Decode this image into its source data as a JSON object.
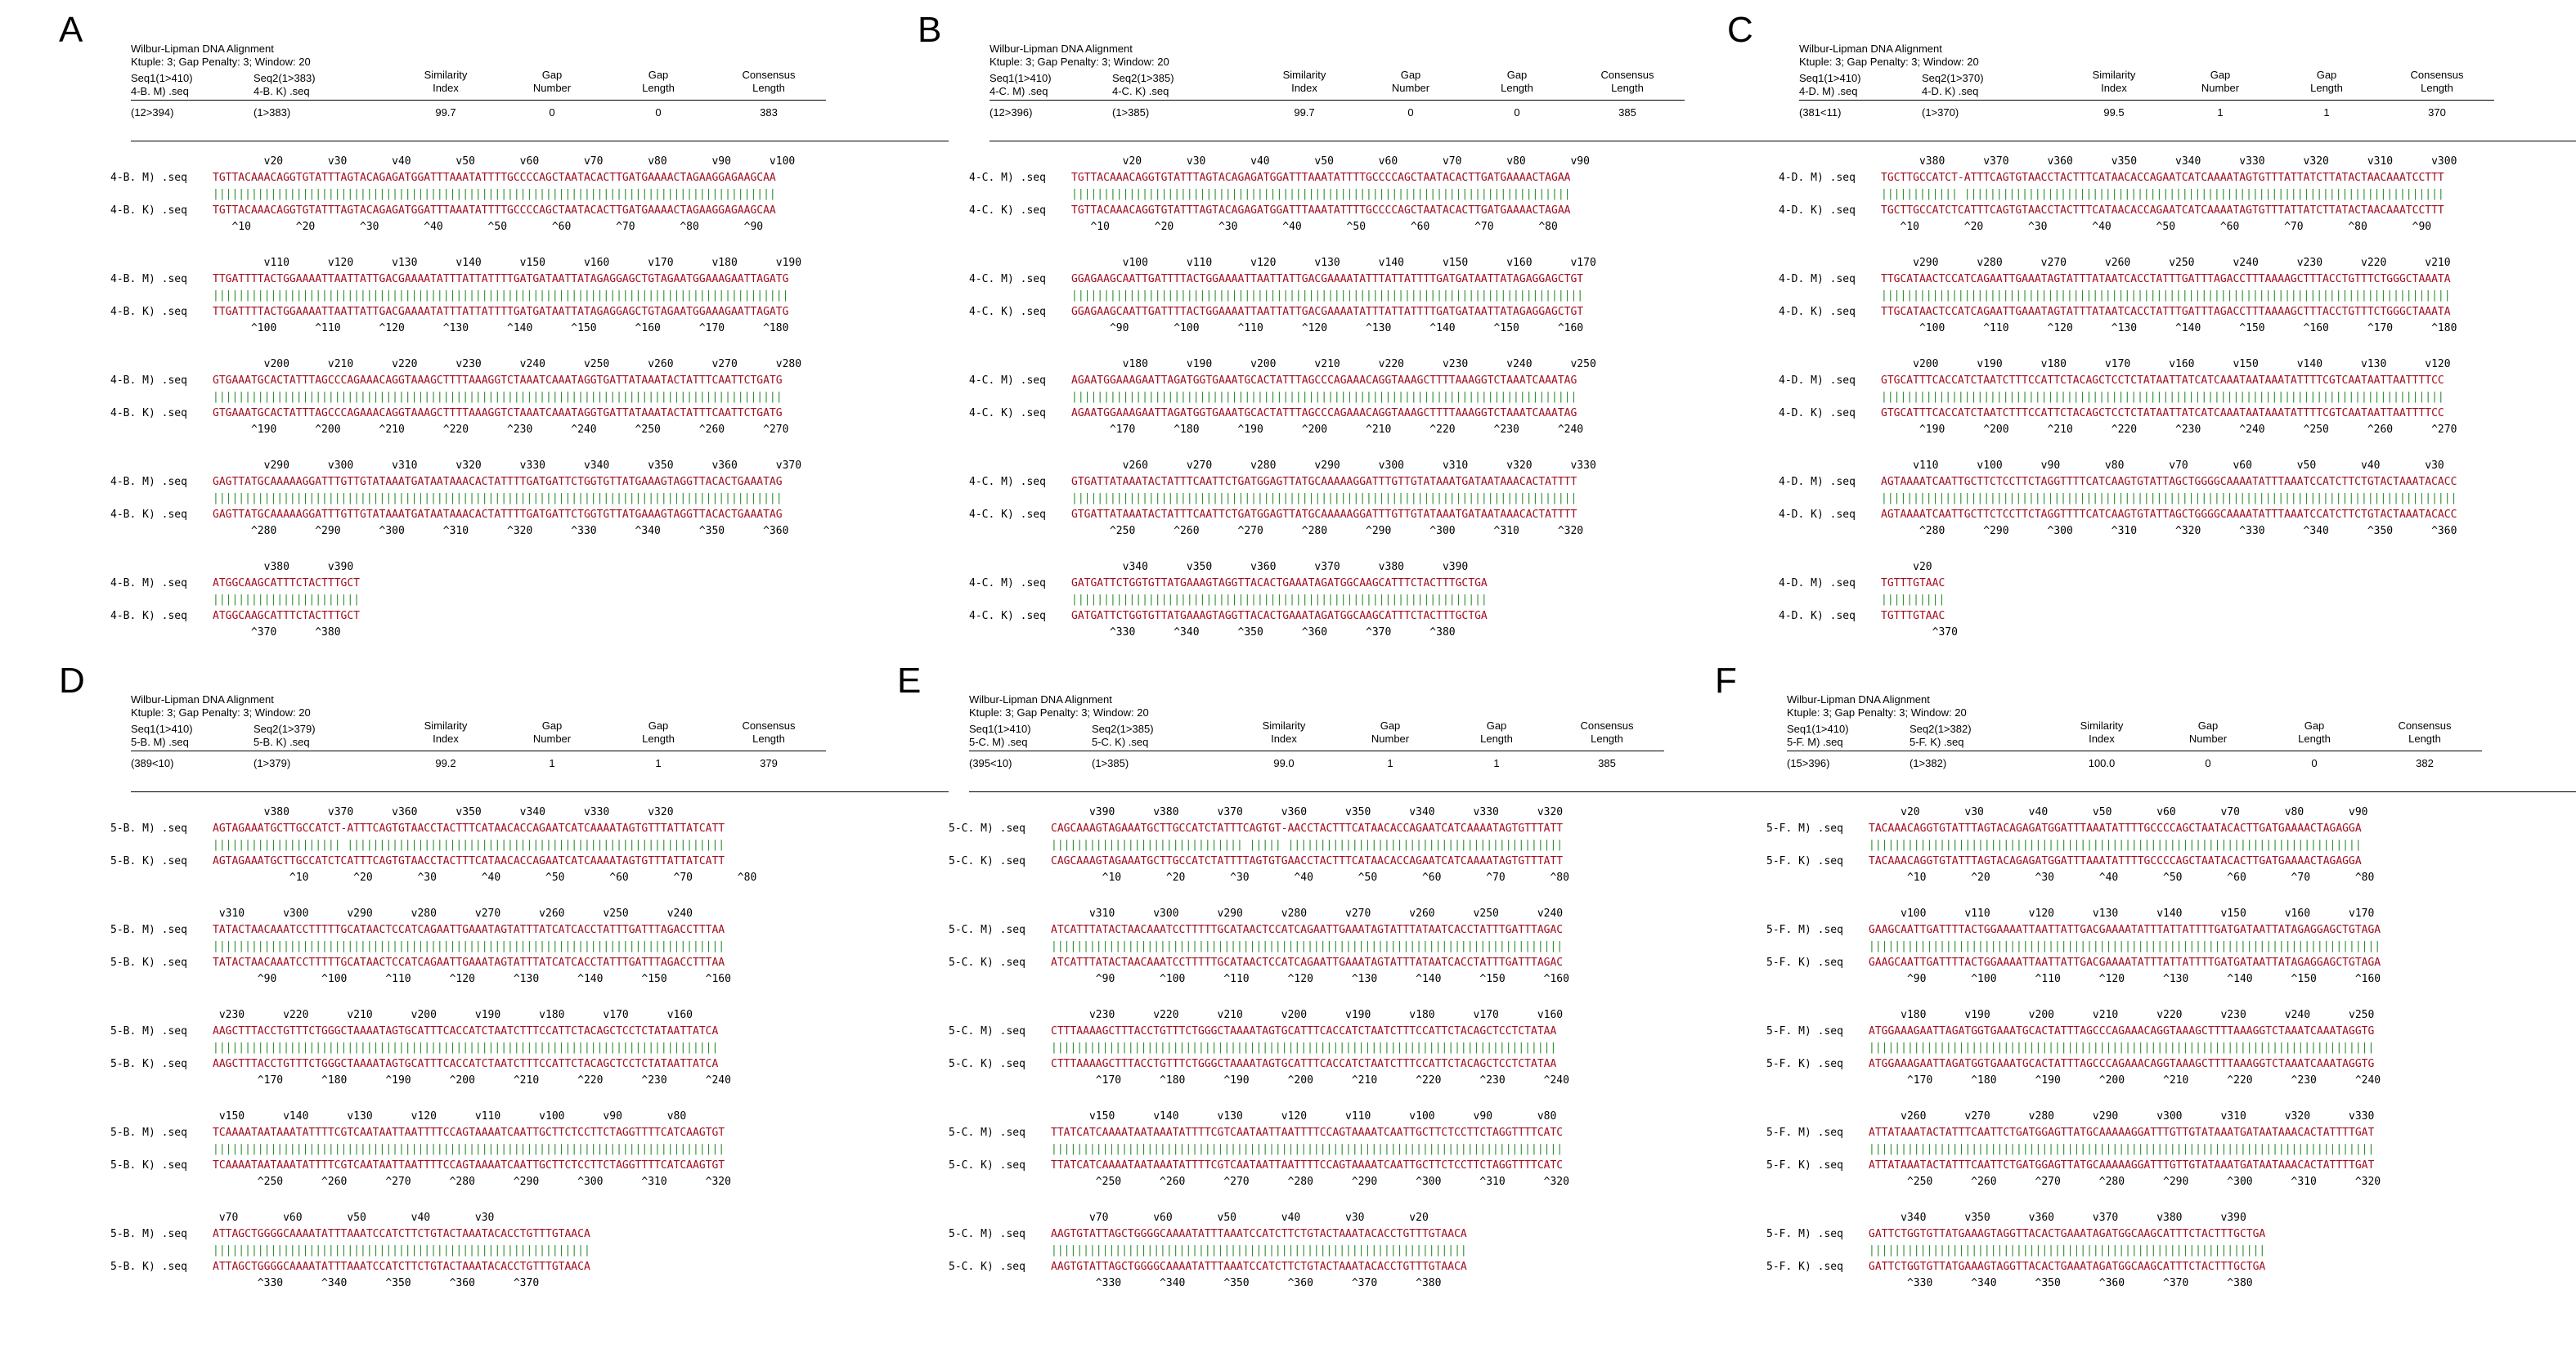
{
  "header_common": {
    "title": "Wilbur-Lipman DNA Alignment",
    "params": "Ktuple: 3; Gap Penalty: 3; Window: 20",
    "col_similarity": [
      "Similarity",
      "Index"
    ],
    "col_gap_number": [
      "Gap",
      "Number"
    ],
    "col_gap_length": [
      "Gap",
      "Length"
    ],
    "col_consensus": [
      "Consensus",
      "Length"
    ]
  },
  "colors": {
    "sequence": "#a00d1e",
    "match": "#2e8b2e",
    "text": "#000000"
  },
  "panels": [
    {
      "letter": "A",
      "seq1": "Seq1(1>410)",
      "seq2": "Seq2(1>383)",
      "name1": "4-B. M) .seq",
      "name2": "4-B. K) .seq",
      "range1": "(12>394)",
      "range2": "(1>383)",
      "similarity": "99.7",
      "gap_number": "0",
      "gap_length": "0",
      "consensus": "383",
      "label1": "4-B. M) .seq",
      "label2": "4-B. K) .seq",
      "blocks": [
        {
          "top": "        v20       v30       v40       v50       v60       v70       v80       v90      v100",
          "s1": "TGTTACAAACAGGTGTATTTAGTACAGAGATGGATTTAAATATTTTGCCCCAGCTAATACACTTGATGAAAACTAGAAGGAGAAGCAA",
          "s2": "TGTTACAAACAGGTGTATTTAGTACAGAGATGGATTTAAATATTTTGCCCCAGCTAATACACTTGATGAAAACTAGAAGGAGAAGCAA",
          "bot": "   ^10       ^20       ^30       ^40       ^50       ^60       ^70       ^80       ^90"
        },
        {
          "top": "        v110      v120      v130      v140      v150      v160      v170      v180      v190",
          "s1": "TTGATTTTACTGGAAAATTAATTATTGACGAAAATATTTATTATTTTGATGATAATTATAGAGGAGCTGTAGAATGGAAAGAATTAGATG",
          "s2": "TTGATTTTACTGGAAAATTAATTATTGACGAAAATATTTATTATTTTGATGATAATTATAGAGGAGCTGTAGAATGGAAAGAATTAGATG",
          "bot": "      ^100      ^110      ^120      ^130      ^140      ^150      ^160      ^170      ^180"
        },
        {
          "top": "        v200      v210      v220      v230      v240      v250      v260      v270      v280",
          "s1": "GTGAAATGCACTATTTAGCCCAGAAACAGGTAAAGCTTTTAAAGGTCTAAATCAAATAGGTGATTATAAATACTATTTCAATTCTGATG",
          "s2": "GTGAAATGCACTATTTAGCCCAGAAACAGGTAAAGCTTTTAAAGGTCTAAATCAAATAGGTGATTATAAATACTATTTCAATTCTGATG",
          "bot": "      ^190      ^200      ^210      ^220      ^230      ^240      ^250      ^260      ^270"
        },
        {
          "top": "        v290      v300      v310      v320      v330      v340      v350      v360      v370",
          "s1": "GAGTTATGCAAAAAGGATTTGTTGTATAAATGATAATAAACACTATTTTGATGATTCTGGTGTTATGAAAGTAGGTTACACTGAAATAG",
          "s2": "GAGTTATGCAAAAAGGATTTGTTGTATAAATGATAATAAACACTATTTTGATGATTCTGGTGTTATGAAAGTAGGTTACACTGAAATAG",
          "bot": "      ^280      ^290      ^300      ^310      ^320      ^330      ^340      ^350      ^360"
        },
        {
          "top": "        v380      v390",
          "s1": "ATGGCAAGCATTTCTACTTTGCT",
          "s2": "ATGGCAAGCATTTCTACTTTGCT",
          "bot": "      ^370      ^380"
        }
      ]
    },
    {
      "letter": "B",
      "seq1": "Seq1(1>410)",
      "seq2": "Seq2(1>385)",
      "name1": "4-C. M) .seq",
      "name2": "4-C. K) .seq",
      "range1": "(12>396)",
      "range2": "(1>385)",
      "similarity": "99.7",
      "gap_number": "0",
      "gap_length": "0",
      "consensus": "385",
      "label1": "4-C. M) .seq",
      "label2": "4-C. K) .seq",
      "blocks": [
        {
          "top": "        v20       v30       v40       v50       v60       v70       v80       v90",
          "s1": "TGTTACAAACAGGTGTATTTAGTACAGAGATGGATTTAAATATTTTGCCCCAGCTAATACACTTGATGAAAACTAGAA",
          "s2": "TGTTACAAACAGGTGTATTTAGTACAGAGATGGATTTAAATATTTTGCCCCAGCTAATACACTTGATGAAAACTAGAA",
          "bot": "   ^10       ^20       ^30       ^40       ^50       ^60       ^70       ^80"
        },
        {
          "top": "        v100      v110      v120      v130      v140      v150      v160      v170",
          "s1": "GGAGAAGCAATTGATTTTACTGGAAAATTAATTATTGACGAAAATATTTATTATTTTGATGATAATTATAGAGGAGCTGT",
          "s2": "GGAGAAGCAATTGATTTTACTGGAAAATTAATTATTGACGAAAATATTTATTATTTTGATGATAATTATAGAGGAGCTGT",
          "bot": "      ^90       ^100      ^110      ^120      ^130      ^140      ^150      ^160"
        },
        {
          "top": "        v180      v190      v200      v210      v220      v230      v240      v250",
          "s1": "AGAATGGAAAGAATTAGATGGTGAAATGCACTATTTAGCCCAGAAACAGGTAAAGCTTTTAAAGGTCTAAATCAAATAG",
          "s2": "AGAATGGAAAGAATTAGATGGTGAAATGCACTATTTAGCCCAGAAACAGGTAAAGCTTTTAAAGGTCTAAATCAAATAG",
          "bot": "      ^170      ^180      ^190      ^200      ^210      ^220      ^230      ^240"
        },
        {
          "top": "        v260      v270      v280      v290      v300      v310      v320      v330",
          "s1": "GTGATTATAAATACTATTTCAATTCTGATGGAGTTATGCAAAAAGGATTTGTTGTATAAATGATAATAAACACTATTTT",
          "s2": "GTGATTATAAATACTATTTCAATTCTGATGGAGTTATGCAAAAAGGATTTGTTGTATAAATGATAATAAACACTATTTT",
          "bot": "      ^250      ^260      ^270      ^280      ^290      ^300      ^310      ^320"
        },
        {
          "top": "        v340      v350      v360      v370      v380      v390",
          "s1": "GATGATTCTGGTGTTATGAAAGTAGGTTACACTGAAATAGATGGCAAGCATTTCTACTTTGCTGA",
          "s2": "GATGATTCTGGTGTTATGAAAGTAGGTTACACTGAAATAGATGGCAAGCATTTCTACTTTGCTGA",
          "bot": "      ^330      ^340      ^350      ^360      ^370      ^380"
        }
      ]
    },
    {
      "letter": "C",
      "seq1": "Seq1(1>410)",
      "seq2": "Seq2(1>370)",
      "name1": "4-D. M) .seq",
      "name2": "4-D. K) .seq",
      "range1": "(381<11)",
      "range2": "(1>370)",
      "similarity": "99.5",
      "gap_number": "1",
      "gap_length": "1",
      "consensus": "370",
      "label1": "4-D. M) .seq",
      "label2": "4-D. K) .seq",
      "blocks": [
        {
          "top": "      v380      v370      v360      v350      v340      v330      v320      v310      v300",
          "s1": "TGCTTGCCATCT-ATTTCAGTGTAACCTACTTTCATAACACCAGAATCATCAAAATAGTGTTTATTATCTTATACTAACAAATCCTTT",
          "s2": "TGCTTGCCATCTCATTTCAGTGTAACCTACTTTCATAACACCAGAATCATCAAAATAGTGTTTATTATCTTATACTAACAAATCCTTT",
          "bot": "   ^10       ^20       ^30       ^40       ^50       ^60       ^70       ^80       ^90"
        },
        {
          "top": "     v290      v280      v270      v260      v250      v240      v230      v220      v210",
          "s1": "TTGCATAACTCCATCAGAATTGAAATAGTATTTATAATCACCTATTTGATTTAGACCTTTAAAAGCTTTACCTGTTTCTGGGCTAAATA",
          "s2": "TTGCATAACTCCATCAGAATTGAAATAGTATTTATAATCACCTATTTGATTTAGACCTTTAAAAGCTTTACCTGTTTCTGGGCTAAATA",
          "bot": "      ^100      ^110      ^120      ^130      ^140      ^150      ^160      ^170      ^180"
        },
        {
          "top": "     v200      v190      v180      v170      v160      v150      v140      v130      v120",
          "s1": "GTGCATTTCACCATCTAATCTTTCCATTCTACAGCTCCTCTATAATTATCATCAAATAATAAATATTTTCGTCAATAATTAATTTTCC",
          "s2": "GTGCATTTCACCATCTAATCTTTCCATTCTACAGCTCCTCTATAATTATCATCAAATAATAAATATTTTCGTCAATAATTAATTTTCC",
          "bot": "      ^190      ^200      ^210      ^220      ^230      ^240      ^250      ^260      ^270"
        },
        {
          "top": "     v110      v100      v90       v80       v70       v60       v50       v40       v30",
          "s1": "AGTAAAATCAATTGCTTCTCCTTCTAGGTTTTCATCAAGTGTATTAGCTGGGGCAAAATATTTAAATCCATCTTCTGTACTAAATACACC",
          "s2": "AGTAAAATCAATTGCTTCTCCTTCTAGGTTTTCATCAAGTGTATTAGCTGGGGCAAAATATTTAAATCCATCTTCTGTACTAAATACACC",
          "bot": "      ^280      ^290      ^300      ^310      ^320      ^330      ^340      ^350      ^360"
        },
        {
          "top": "     v20",
          "s1": "TGTTTGTAAC",
          "s2": "TGTTTGTAAC",
          "bot": "        ^370"
        }
      ]
    },
    {
      "letter": "D",
      "seq1": "Seq1(1>410)",
      "seq2": "Seq2(1>379)",
      "name1": "5-B. M) .seq",
      "name2": "5-B. K) .seq",
      "range1": "(389<10)",
      "range2": "(1>379)",
      "similarity": "99.2",
      "gap_number": "1",
      "gap_length": "1",
      "consensus": "379",
      "label1": "5-B. M) .seq",
      "label2": "5-B. K) .seq",
      "blocks": [
        {
          "top": "        v380      v370      v360      v350      v340      v330      v320",
          "s1": "AGTAGAAATGCTTGCCATCT-ATTTCAGTGTAACCTACTTTCATAACACCAGAATCATCAAAATAGTGTTTATTATCATT",
          "s2": "AGTAGAAATGCTTGCCATCTCATTTCAGTGTAACCTACTTTCATAACACCAGAATCATCAAAATAGTGTTTATTATCATT",
          "bot": "            ^10       ^20       ^30       ^40       ^50       ^60       ^70       ^80"
        },
        {
          "top": " v310      v300      v290      v280      v270      v260      v250      v240",
          "s1": "TATACTAACAAATCCTTTTTGCATAACTCCATCAGAATTGAAATAGTATTTATCATCACCTATTTGATTTAGACCTTTAA",
          "s2": "TATACTAACAAATCCTTTTTGCATAACTCCATCAGAATTGAAATAGTATTTATCATCACCTATTTGATTTAGACCTTTAA",
          "bot": "       ^90       ^100      ^110      ^120      ^130      ^140      ^150      ^160"
        },
        {
          "top": " v230      v220      v210      v200      v190      v180      v170      v160",
          "s1": "AAGCTTTACCTGTTTCTGGGCTAAAATAGTGCATTTCACCATCTAATCTTTCCATTCTACAGCTCCTCTATAATTATCA",
          "s2": "AAGCTTTACCTGTTTCTGGGCTAAAATAGTGCATTTCACCATCTAATCTTTCCATTCTACAGCTCCTCTATAATTATCA",
          "bot": "       ^170      ^180      ^190      ^200      ^210      ^220      ^230      ^240"
        },
        {
          "top": " v150      v140      v130      v120      v110      v100      v90       v80",
          "s1": "TCAAAATAATAAATATTTTCGTCAATAATTAATTTTCCAGTAAAATCAATTGCTTCTCCTTCTAGGTTTTCATCAAGTGT",
          "s2": "TCAAAATAATAAATATTTTCGTCAATAATTAATTTTCCAGTAAAATCAATTGCTTCTCCTTCTAGGTTTTCATCAAGTGT",
          "bot": "       ^250      ^260      ^270      ^280      ^290      ^300      ^310      ^320"
        },
        {
          "top": " v70       v60       v50       v40       v30",
          "s1": "ATTAGCTGGGGCAAAATATTTAAATCCATCTTCTGTACTAAATACACCTGTTTGTAACA",
          "s2": "ATTAGCTGGGGCAAAATATTTAAATCCATCTTCTGTACTAAATACACCTGTTTGTAACA",
          "bot": "       ^330      ^340      ^350      ^360      ^370"
        }
      ]
    },
    {
      "letter": "E",
      "seq1": "Seq1(1>410)",
      "seq2": "Seq2(1>385)",
      "name1": "5-C. M) .seq",
      "name2": "5-C. K) .seq",
      "range1": "(395<10)",
      "range2": "(1>385)",
      "similarity": "99.0",
      "gap_number": "1",
      "gap_length": "1",
      "consensus": "385",
      "label1": "5-C. M) .seq",
      "label2": "5-C. K) .seq",
      "blocks": [
        {
          "top": "      v390      v380      v370      v360      v350      v340      v330      v320",
          "s1": "CAGCAAAGTAGAAATGCTTGCCATCTATTTCAGTGT-AACCTACTTTCATAACACCAGAATCATCAAAATAGTGTTTATT",
          "s2": "CAGCAAAGTAGAAATGCTTGCCATCTATTTTAGTGTGAACCTACTTTCATAACACCAGAATCATCAAAATAGTGTTTATT",
          "bot": "        ^10       ^20       ^30       ^40       ^50       ^60       ^70       ^80"
        },
        {
          "top": "      v310      v300      v290      v280      v270      v260      v250      v240",
          "s1": "ATCATTTATACTAACAAATCCTTTTTGCATAACTCCATCAGAATTGAAATAGTATTTATAATCACCTATTTGATTTAGAC",
          "s2": "ATCATTTATACTAACAAATCCTTTTTGCATAACTCCATCAGAATTGAAATAGTATTTATAATCACCTATTTGATTTAGAC",
          "bot": "       ^90       ^100      ^110      ^120      ^130      ^140      ^150      ^160"
        },
        {
          "top": "      v230      v220      v210      v200      v190      v180      v170      v160",
          "s1": "CTTTAAAAGCTTTACCTGTTTCTGGGCTAAAATAGTGCATTTCACCATCTAATCTTTCCATTCTACAGCTCCTCTATAA",
          "s2": "CTTTAAAAGCTTTACCTGTTTCTGGGCTAAAATAGTGCATTTCACCATCTAATCTTTCCATTCTACAGCTCCTCTATAA",
          "bot": "       ^170      ^180      ^190      ^200      ^210      ^220      ^230      ^240"
        },
        {
          "top": "      v150      v140      v130      v120      v110      v100      v90       v80",
          "s1": "TTATCATCAAAATAATAAATATTTTCGTCAATAATTAATTTTCCAGTAAAATCAATTGCTTCTCCTTCTAGGTTTTCATC",
          "s2": "TTATCATCAAAATAATAAATATTTTCGTCAATAATTAATTTTCCAGTAAAATCAATTGCTTCTCCTTCTAGGTTTTCATC",
          "bot": "       ^250      ^260      ^270      ^280      ^290      ^300      ^310      ^320"
        },
        {
          "top": "      v70       v60       v50       v40       v30       v20",
          "s1": "AAGTGTATTAGCTGGGGCAAAATATTTAAATCCATCTTCTGTACTAAATACACCTGTTTGTAACA",
          "s2": "AAGTGTATTAGCTGGGGCAAAATATTTAAATCCATCTTCTGTACTAAATACACCTGTTTGTAACA",
          "bot": "       ^330      ^340      ^350      ^360      ^370      ^380"
        }
      ]
    },
    {
      "letter": "F",
      "seq1": "Seq1(1>410)",
      "seq2": "Seq2(1>382)",
      "name1": "5-F. M) .seq",
      "name2": "5-F. K) .seq",
      "range1": "(15>396)",
      "range2": "(1>382)",
      "similarity": "100.0",
      "gap_number": "0",
      "gap_length": "0",
      "consensus": "382",
      "label1": "5-F. M) .seq",
      "label2": "5-F. K) .seq",
      "blocks": [
        {
          "top": "     v20       v30       v40       v50       v60       v70       v80       v90",
          "s1": "TACAAACAGGTGTATTTAGTACAGAGATGGATTTAAATATTTTGCCCCAGCTAATACACTTGATGAAAACTAGAGGA",
          "s2": "TACAAACAGGTGTATTTAGTACAGAGATGGATTTAAATATTTTGCCCCAGCTAATACACTTGATGAAAACTAGAGGA",
          "bot": "      ^10       ^20       ^30       ^40       ^50       ^60       ^70       ^80"
        },
        {
          "top": "     v100      v110      v120      v130      v140      v150      v160      v170",
          "s1": "GAAGCAATTGATTTTACTGGAAAATTAATTATTGACGAAAATATTTATTATTTTGATGATAATTATAGAGGAGCTGTAGA",
          "s2": "GAAGCAATTGATTTTACTGGAAAATTAATTATTGACGAAAATATTTATTATTTTGATGATAATTATAGAGGAGCTGTAGA",
          "bot": "      ^90       ^100      ^110      ^120      ^130      ^140      ^150      ^160"
        },
        {
          "top": "     v180      v190      v200      v210      v220      v230      v240      v250",
          "s1": "ATGGAAAGAATTAGATGGTGAAATGCACTATTTAGCCCAGAAACAGGTAAAGCTTTTAAAGGTCTAAATCAAATAGGTG",
          "s2": "ATGGAAAGAATTAGATGGTGAAATGCACTATTTAGCCCAGAAACAGGTAAAGCTTTTAAAGGTCTAAATCAAATAGGTG",
          "bot": "      ^170      ^180      ^190      ^200      ^210      ^220      ^230      ^240"
        },
        {
          "top": "     v260      v270      v280      v290      v300      v310      v320      v330",
          "s1": "ATTATAAATACTATTTCAATTCTGATGGAGTTATGCAAAAAGGATTTGTTGTATAAATGATAATAAACACTATTTTGAT",
          "s2": "ATTATAAATACTATTTCAATTCTGATGGAGTTATGCAAAAAGGATTTGTTGTATAAATGATAATAAACACTATTTTGAT",
          "bot": "      ^250      ^260      ^270      ^280      ^290      ^300      ^310      ^320"
        },
        {
          "top": "     v340      v350      v360      v370      v380      v390",
          "s1": "GATTCTGGTGTTATGAAAGTAGGTTACACTGAAATAGATGGCAAGCATTTCTACTTTGCTGA",
          "s2": "GATTCTGGTGTTATGAAAGTAGGTTACACTGAAATAGATGGCAAGCATTTCTACTTTGCTGA",
          "bot": "      ^330      ^340      ^350      ^360      ^370      ^380"
        }
      ]
    }
  ]
}
